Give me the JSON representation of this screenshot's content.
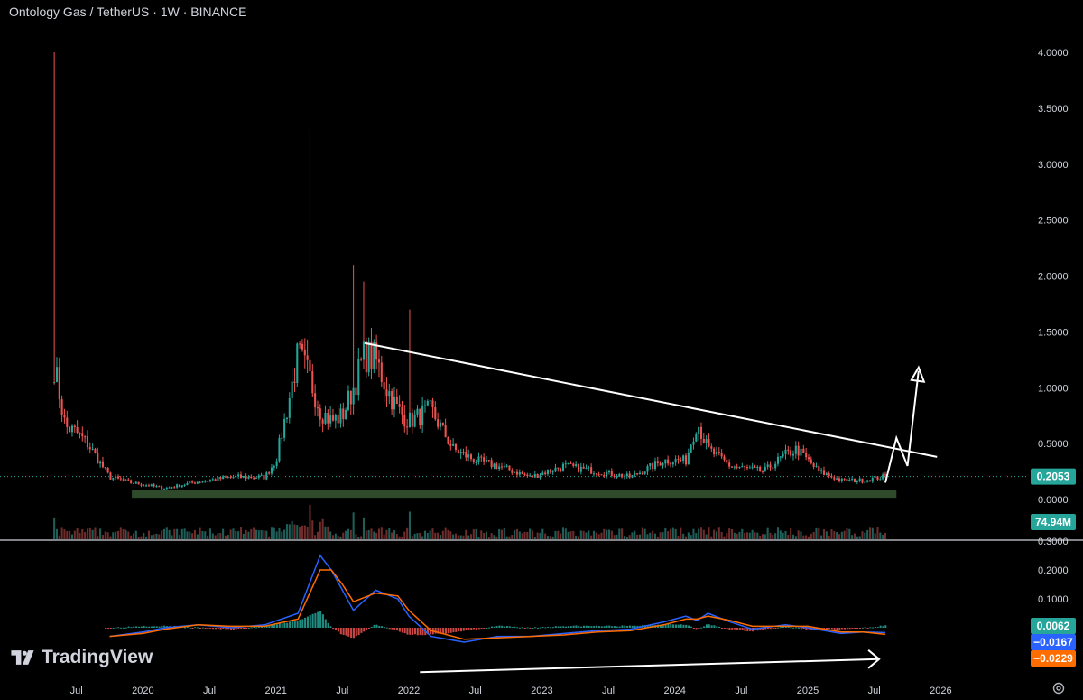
{
  "header": {
    "title": "Ontology Gas / TetherUS · 1W · BINANCE"
  },
  "brand": {
    "name": "TradingView"
  },
  "icons": {
    "logo": "tradingview-logo-icon",
    "settings": "gear-icon"
  },
  "colors": {
    "background": "#000000",
    "up": "#26a69a",
    "down": "#ef5350",
    "support_zone": "#2e4a2a",
    "annotation": "#ffffff",
    "macd_line": "#2962ff",
    "signal_line": "#ff6d00",
    "price_badge": "#26a69a",
    "volume_badge": "#26a69a"
  },
  "chart_data": [
    {
      "type": "candlestick",
      "title": "Ontology Gas / TetherUS · 1W · BINANCE",
      "ylim": [
        0,
        4.0
      ],
      "y_ticks": [
        "4.0000",
        "3.5000",
        "3.0000",
        "2.5000",
        "2.0000",
        "1.5000",
        "1.0000",
        "0.5000",
        "0.0000"
      ],
      "x_ticks": [
        "Jul",
        "2020",
        "Jul",
        "2021",
        "Jul",
        "2022",
        "Jul",
        "2023",
        "Jul",
        "2024",
        "Jul",
        "2025",
        "Jul",
        "2026"
      ],
      "anchors": [
        {
          "t": "2019-05",
          "p": 1.2,
          "spike": 4.0
        },
        {
          "t": "2019-06",
          "p": 0.65
        },
        {
          "t": "2019-07",
          "p": 0.6
        },
        {
          "t": "2019-08",
          "p": 0.5
        },
        {
          "t": "2019-09",
          "p": 0.35
        },
        {
          "t": "2019-10",
          "p": 0.2
        },
        {
          "t": "2019-12",
          "p": 0.15
        },
        {
          "t": "2020-03",
          "p": 0.1
        },
        {
          "t": "2020-06",
          "p": 0.16
        },
        {
          "t": "2020-09",
          "p": 0.2
        },
        {
          "t": "2020-12",
          "p": 0.2
        },
        {
          "t": "2021-01",
          "p": 0.35
        },
        {
          "t": "2021-02",
          "p": 0.8
        },
        {
          "t": "2021-03",
          "p": 1.3
        },
        {
          "t": "2021-04",
          "p": 1.1,
          "spike": 3.3
        },
        {
          "t": "2021-05",
          "p": 0.8
        },
        {
          "t": "2021-06",
          "p": 0.7
        },
        {
          "t": "2021-07",
          "p": 0.75
        },
        {
          "t": "2021-08",
          "p": 1.0,
          "spike": 2.1
        },
        {
          "t": "2021-09",
          "p": 1.3,
          "spike": 1.95
        },
        {
          "t": "2021-10",
          "p": 1.25
        },
        {
          "t": "2021-11",
          "p": 1.0
        },
        {
          "t": "2021-12",
          "p": 0.8
        },
        {
          "t": "2022-01",
          "p": 0.7,
          "spike": 1.7
        },
        {
          "t": "2022-03",
          "p": 0.8
        },
        {
          "t": "2022-05",
          "p": 0.45
        },
        {
          "t": "2022-07",
          "p": 0.35
        },
        {
          "t": "2022-09",
          "p": 0.3
        },
        {
          "t": "2022-12",
          "p": 0.2
        },
        {
          "t": "2023-03",
          "p": 0.3
        },
        {
          "t": "2023-06",
          "p": 0.25
        },
        {
          "t": "2023-09",
          "p": 0.2
        },
        {
          "t": "2023-12",
          "p": 0.35
        },
        {
          "t": "2024-02",
          "p": 0.35
        },
        {
          "t": "2024-03",
          "p": 0.7
        },
        {
          "t": "2024-04",
          "p": 0.45
        },
        {
          "t": "2024-06",
          "p": 0.3
        },
        {
          "t": "2024-09",
          "p": 0.25
        },
        {
          "t": "2024-11",
          "p": 0.4
        },
        {
          "t": "2024-12",
          "p": 0.45
        },
        {
          "t": "2025-02",
          "p": 0.25
        },
        {
          "t": "2025-04",
          "p": 0.17
        },
        {
          "t": "2025-06",
          "p": 0.17
        },
        {
          "t": "2025-08",
          "p": 0.2053
        }
      ],
      "last_price": "0.2053",
      "volume_label": "74.94M",
      "support_zone": {
        "from": "2019-12",
        "to": "2025-09",
        "low": 0.015,
        "high": 0.085
      },
      "trendline": {
        "start": [
          "2021-09",
          1.4
        ],
        "end": [
          "2025-09",
          0.3
        ]
      },
      "projection": [
        [
          "2025-08",
          0.15
        ],
        [
          "2025-09",
          0.55
        ],
        [
          "2025-10",
          0.3
        ],
        [
          "2025-11",
          1.15
        ]
      ]
    },
    {
      "type": "line",
      "title": "MACD",
      "ylim": [
        -0.05,
        0.3
      ],
      "y_ticks": [
        "0.3000",
        "0.2000",
        "0.1000"
      ],
      "series": [
        {
          "color": "#2962ff",
          "values": [
            [
              "2019-10",
              -0.03
            ],
            [
              "2020-01",
              -0.015
            ],
            [
              "2020-03",
              0.0
            ],
            [
              "2020-06",
              0.01
            ],
            [
              "2020-09",
              0.0
            ],
            [
              "2020-12",
              0.01
            ],
            [
              "2021-03",
              0.05
            ],
            [
              "2021-05",
              0.25
            ],
            [
              "2021-06",
              0.2
            ],
            [
              "2021-07",
              0.13
            ],
            [
              "2021-08",
              0.06
            ],
            [
              "2021-10",
              0.13
            ],
            [
              "2021-12",
              0.1
            ],
            [
              "2022-01",
              0.04
            ],
            [
              "2022-03",
              -0.03
            ],
            [
              "2022-06",
              -0.05
            ],
            [
              "2022-09",
              -0.03
            ],
            [
              "2022-12",
              -0.03
            ],
            [
              "2023-03",
              -0.02
            ],
            [
              "2023-06",
              -0.01
            ],
            [
              "2023-09",
              -0.005
            ],
            [
              "2023-12",
              0.02
            ],
            [
              "2024-02",
              0.04
            ],
            [
              "2024-03",
              0.025
            ],
            [
              "2024-04",
              0.05
            ],
            [
              "2024-06",
              0.02
            ],
            [
              "2024-08",
              -0.005
            ],
            [
              "2024-11",
              0.01
            ],
            [
              "2025-01",
              0.0
            ],
            [
              "2025-04",
              -0.02
            ],
            [
              "2025-06",
              -0.015
            ],
            [
              "2025-08",
              -0.0167
            ]
          ]
        },
        {
          "color": "#ff6d00",
          "values": [
            [
              "2019-10",
              -0.03
            ],
            [
              "2020-01",
              -0.02
            ],
            [
              "2020-03",
              -0.005
            ],
            [
              "2020-06",
              0.01
            ],
            [
              "2020-09",
              0.005
            ],
            [
              "2020-12",
              0.005
            ],
            [
              "2021-03",
              0.03
            ],
            [
              "2021-05",
              0.2
            ],
            [
              "2021-06",
              0.2
            ],
            [
              "2021-07",
              0.15
            ],
            [
              "2021-08",
              0.09
            ],
            [
              "2021-10",
              0.12
            ],
            [
              "2021-12",
              0.11
            ],
            [
              "2022-01",
              0.06
            ],
            [
              "2022-03",
              -0.01
            ],
            [
              "2022-06",
              -0.04
            ],
            [
              "2022-09",
              -0.035
            ],
            [
              "2022-12",
              -0.03
            ],
            [
              "2023-03",
              -0.025
            ],
            [
              "2023-06",
              -0.015
            ],
            [
              "2023-09",
              -0.01
            ],
            [
              "2023-12",
              0.01
            ],
            [
              "2024-02",
              0.03
            ],
            [
              "2024-03",
              0.03
            ],
            [
              "2024-04",
              0.04
            ],
            [
              "2024-06",
              0.025
            ],
            [
              "2024-08",
              0.005
            ],
            [
              "2024-11",
              0.005
            ],
            [
              "2025-01",
              0.005
            ],
            [
              "2025-04",
              -0.015
            ],
            [
              "2025-06",
              -0.015
            ],
            [
              "2025-08",
              -0.0229
            ]
          ]
        }
      ],
      "last_values": {
        "histogram": "0.0062",
        "macd": "−0.0167",
        "signal": "−0.0229"
      },
      "arrow": {
        "start": [
          "2022-02",
          -0.06
        ],
        "end": [
          "2025-05",
          -0.015
        ]
      }
    }
  ]
}
